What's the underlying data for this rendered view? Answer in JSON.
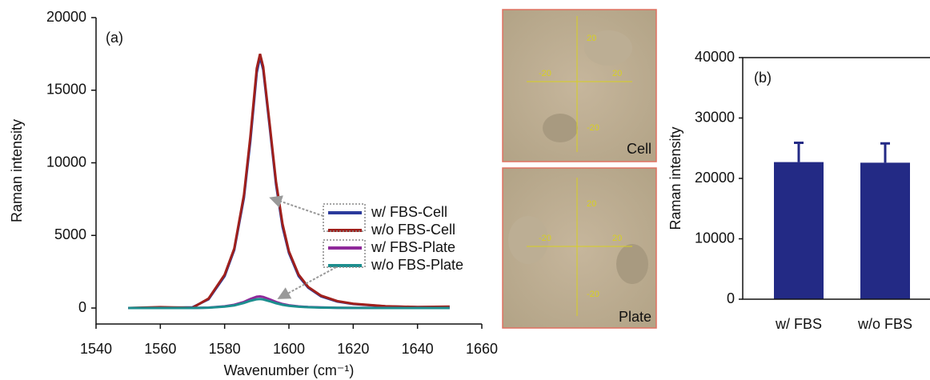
{
  "chart_data": [
    {
      "type": "line",
      "label": "(a)",
      "x_label": "Wavenumber (cm⁻¹)",
      "y_label": "Raman intensity",
      "x": [
        1550,
        1560,
        1570,
        1575,
        1580,
        1583,
        1586,
        1588,
        1590,
        1591,
        1592,
        1594,
        1596,
        1598,
        1600,
        1603,
        1606,
        1610,
        1615,
        1620,
        1630,
        1640,
        1650
      ],
      "series": [
        {
          "name": "w/ FBS-Cell",
          "color": "#2b3a9c",
          "values": [
            0,
            20,
            50,
            600,
            2200,
            4000,
            7600,
            11500,
            16200,
            17300,
            16400,
            12500,
            8500,
            5600,
            3800,
            2200,
            1400,
            800,
            450,
            280,
            120,
            60,
            80
          ]
        },
        {
          "name": "w/o FBS-Cell",
          "color": "#a0201c",
          "values": [
            0,
            60,
            20,
            650,
            2300,
            4100,
            7800,
            11800,
            16500,
            17500,
            16600,
            12700,
            8700,
            5800,
            3900,
            2300,
            1450,
            850,
            480,
            300,
            130,
            70,
            100
          ]
        },
        {
          "name": "w/ FBS-Plate",
          "color": "#8e2a9a",
          "values": [
            0,
            0,
            0,
            30,
            120,
            220,
            420,
            620,
            780,
            800,
            760,
            600,
            420,
            280,
            190,
            110,
            70,
            40,
            20,
            10,
            5,
            0,
            0
          ]
        },
        {
          "name": "w/o FBS-Plate",
          "color": "#1c8e8e",
          "values": [
            0,
            0,
            0,
            25,
            100,
            180,
            350,
            500,
            600,
            620,
            590,
            470,
            330,
            220,
            150,
            90,
            55,
            30,
            15,
            8,
            4,
            0,
            0
          ]
        }
      ],
      "xlim": [
        1540,
        1660
      ],
      "xticks": [
        1540,
        1560,
        1580,
        1600,
        1620,
        1640,
        1660
      ],
      "ylim": [
        -1100,
        20000
      ],
      "yticks": [
        0,
        5000,
        10000,
        15000,
        20000
      ]
    },
    {
      "type": "bar",
      "label": "(b)",
      "y_label": "Raman intensity",
      "categories": [
        "w/ FBS",
        "w/o FBS"
      ],
      "values": [
        22700,
        22600
      ],
      "errors": [
        3200,
        3200
      ],
      "color": "#232a85",
      "ylim": [
        0,
        40000
      ],
      "yticks": [
        0,
        10000,
        20000,
        30000,
        40000
      ]
    }
  ],
  "micrographs": [
    {
      "label": "Cell",
      "scale_labels": [
        "20",
        "-20",
        "20",
        "-20"
      ]
    },
    {
      "label": "Plate",
      "scale_labels": [
        "20",
        "-20",
        "20",
        "-20"
      ]
    }
  ]
}
